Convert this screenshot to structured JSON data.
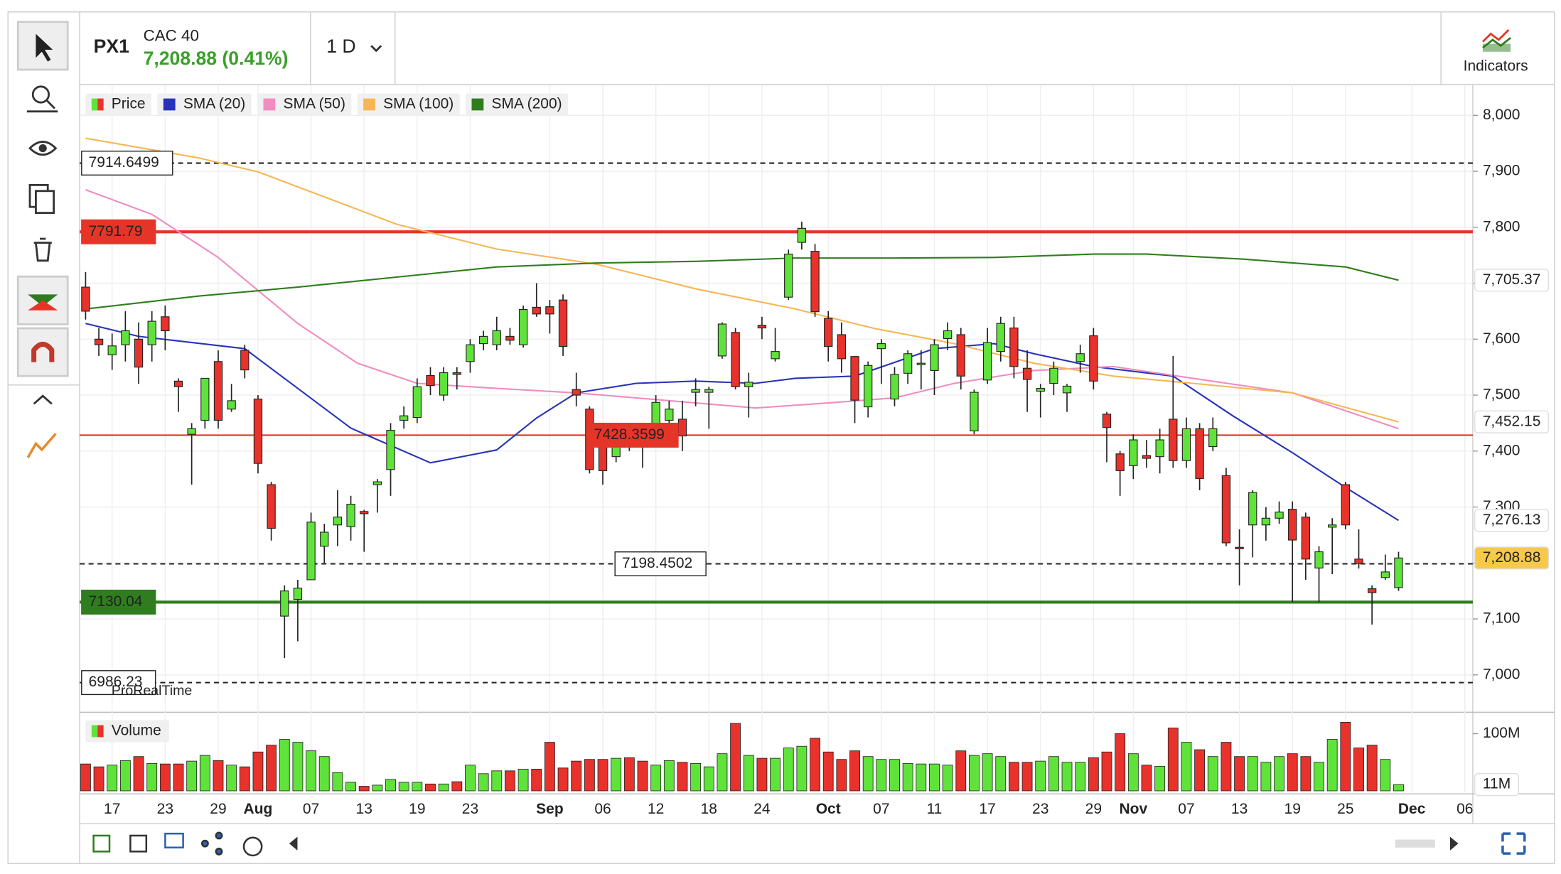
{
  "header": {
    "symbol": "PX1",
    "name": "CAC 40",
    "quote": "7,208.88 (0.41%)",
    "interval": "1 D",
    "indicators": "Indicators"
  },
  "chart_data": [
    {
      "type": "candlestick",
      "name": "Price",
      "up_color": "#5fe33a",
      "down_color": "#e8322b",
      "open": [
        7693,
        7600,
        7572,
        7590,
        7600,
        7590,
        7640,
        7525,
        7430,
        7455,
        7560,
        7475,
        7580,
        7493,
        7340,
        7105,
        7135,
        7170,
        7230,
        7268,
        7265,
        7292,
        7340,
        7367,
        7455,
        7460,
        7535,
        7500,
        7540,
        7560,
        7592,
        7590,
        7605,
        7590,
        7657,
        7658,
        7670,
        7510,
        7475,
        7425,
        7390,
        7440,
        7425,
        7445,
        7455,
        7457,
        7505,
        7505,
        7570,
        7612,
        7515,
        7625,
        7565,
        7675,
        7773,
        7757,
        7637,
        7608,
        7569,
        7479,
        7583,
        7493,
        7539,
        7555,
        7544,
        7601,
        7608,
        7436,
        7527,
        7578,
        7620,
        7548,
        7507,
        7521,
        7504,
        7560,
        7606,
        7466,
        7395,
        7374,
        7392,
        7390,
        7457,
        7383,
        7440,
        7408,
        7356,
        7228,
        7268,
        7268,
        7280,
        7296,
        7282,
        7191,
        7264,
        7340,
        7207,
        7154,
        7174,
        7156
      ],
      "high": [
        7720,
        7620,
        7610,
        7650,
        7630,
        7650,
        7660,
        7530,
        7450,
        7530,
        7580,
        7520,
        7590,
        7500,
        7345,
        7160,
        7170,
        7290,
        7270,
        7330,
        7320,
        7295,
        7350,
        7450,
        7480,
        7530,
        7550,
        7550,
        7550,
        7600,
        7615,
        7640,
        7620,
        7660,
        7700,
        7670,
        7680,
        7540,
        7480,
        7430,
        7430,
        7450,
        7440,
        7500,
        7490,
        7490,
        7530,
        7515,
        7630,
        7620,
        7540,
        7640,
        7620,
        7760,
        7810,
        7770,
        7650,
        7630,
        7570,
        7560,
        7600,
        7550,
        7580,
        7580,
        7600,
        7630,
        7620,
        7510,
        7620,
        7640,
        7640,
        7580,
        7520,
        7560,
        7520,
        7590,
        7620,
        7470,
        7400,
        7430,
        7420,
        7440,
        7570,
        7460,
        7450,
        7460,
        7370,
        7260,
        7330,
        7300,
        7310,
        7310,
        7290,
        7230,
        7280,
        7345,
        7260,
        7160,
        7215,
        7220
      ],
      "low": [
        7635,
        7570,
        7545,
        7560,
        7520,
        7560,
        7580,
        7470,
        7340,
        7440,
        7440,
        7470,
        7530,
        7360,
        7240,
        7030,
        7060,
        7170,
        7200,
        7230,
        7240,
        7220,
        7290,
        7320,
        7440,
        7450,
        7500,
        7490,
        7510,
        7540,
        7580,
        7580,
        7590,
        7585,
        7640,
        7610,
        7570,
        7480,
        7360,
        7340,
        7380,
        7400,
        7370,
        7420,
        7440,
        7400,
        7480,
        7440,
        7565,
        7510,
        7460,
        7600,
        7560,
        7670,
        7760,
        7640,
        7560,
        7540,
        7450,
        7460,
        7520,
        7480,
        7520,
        7510,
        7500,
        7580,
        7510,
        7430,
        7520,
        7560,
        7530,
        7470,
        7460,
        7500,
        7470,
        7540,
        7510,
        7380,
        7320,
        7350,
        7370,
        7360,
        7370,
        7370,
        7330,
        7400,
        7230,
        7160,
        7210,
        7240,
        7270,
        7130,
        7170,
        7130,
        7180,
        7260,
        7190,
        7090,
        7170,
        7150
      ],
      "close": [
        7650,
        7590,
        7588,
        7615,
        7550,
        7632,
        7615,
        7515,
        7440,
        7530,
        7455,
        7490,
        7545,
        7378,
        7262,
        7150,
        7155,
        7273,
        7255,
        7282,
        7305,
        7288,
        7345,
        7437,
        7463,
        7515,
        7517,
        7540,
        7537,
        7590,
        7605,
        7615,
        7598,
        7653,
        7645,
        7645,
        7587,
        7500,
        7367,
        7365,
        7415,
        7430,
        7410,
        7487,
        7475,
        7427,
        7510,
        7510,
        7627,
        7515,
        7523,
        7620,
        7578,
        7752,
        7798,
        7649,
        7587,
        7565,
        7491,
        7553,
        7592,
        7537,
        7574,
        7557,
        7590,
        7615,
        7534,
        7505,
        7594,
        7628,
        7551,
        7528,
        7512,
        7548,
        7516,
        7574,
        7525,
        7442,
        7365,
        7420,
        7387,
        7420,
        7383,
        7440,
        7351,
        7440,
        7236,
        7226,
        7326,
        7280,
        7291,
        7241,
        7207,
        7220,
        7268,
        7268,
        7199,
        7147,
        7184,
        7208.88
      ],
      "close_label": {
        "value": 7208.88,
        "label": "7,208.88"
      },
      "lines": [
        {
          "name": "SMA (20)",
          "color": "#2633b8",
          "x": [
            0,
            4,
            12,
            16,
            20,
            26,
            31,
            34,
            37,
            41.5,
            46,
            50.5,
            53.5,
            58,
            64,
            68.5,
            71.5,
            76,
            82,
            86.5,
            91,
            95,
            99
          ],
          "values": [
            7628,
            7605,
            7583,
            7512,
            7441,
            7379,
            7402,
            7459,
            7504,
            7521,
            7525,
            7521,
            7530,
            7534,
            7583,
            7592,
            7574,
            7551,
            7534,
            7463,
            7397,
            7335,
            7276.13
          ],
          "last_label": {
            "value": 7276.13,
            "label": "7,276.13"
          }
        },
        {
          "name": "SMA (50)",
          "color": "#f08cc0",
          "x": [
            0,
            5,
            10,
            16,
            20.5,
            25,
            31,
            37,
            41.5,
            46,
            50.5,
            56,
            61,
            65.5,
            71.5,
            77.5,
            83.5,
            91,
            99
          ],
          "values": [
            7867,
            7823,
            7746,
            7628,
            7557,
            7521,
            7512,
            7504,
            7495,
            7486,
            7477,
            7486,
            7495,
            7521,
            7544,
            7551,
            7530,
            7504,
            7440
          ]
        },
        {
          "name": "SMA (100)",
          "color": "#f5b755",
          "x": [
            0,
            8.5,
            13,
            23.5,
            31,
            38.5,
            46,
            53.5,
            59.5,
            65.5,
            71.5,
            77.5,
            83.5,
            91,
            99
          ],
          "values": [
            7959,
            7924,
            7899,
            7805,
            7761,
            7734,
            7690,
            7654,
            7619,
            7592,
            7557,
            7534,
            7521,
            7504,
            7452.15
          ],
          "last_label": {
            "value": 7452.15,
            "label": "7,452.15"
          }
        },
        {
          "name": "SMA (200)",
          "color": "#2f7d1e",
          "x": [
            0,
            8.5,
            16,
            23.5,
            31,
            38.5,
            46,
            53.5,
            61,
            68.5,
            76,
            80,
            87.3,
            95,
            99
          ],
          "values": [
            7654,
            7677,
            7693,
            7711,
            7729,
            7736,
            7739,
            7745,
            7745,
            7746,
            7752,
            7752,
            7743,
            7729,
            7705.37
          ],
          "last_label": {
            "value": 7705.37,
            "label": "7,705.37"
          }
        }
      ],
      "levels": [
        {
          "value": 7914.6499,
          "color": "#222222",
          "style": "dashed"
        },
        {
          "value": 7791.79,
          "color": "#e53528",
          "style": "solid"
        },
        {
          "value": 7428.3599,
          "color": "#e53528",
          "style": "thin"
        },
        {
          "value": 7198.4502,
          "color": "#222222",
          "style": "dashed"
        },
        {
          "value": 7130.04,
          "color": "#2f7d1e",
          "style": "solid"
        },
        {
          "value": 6986.23,
          "color": "#222222",
          "style": "dashed"
        }
      ],
      "watermark": "ProRealTime",
      "xlim": [
        -0.45,
        104.6
      ],
      "ylim": [
        6935,
        8055
      ],
      "grid": true,
      "yticks": [
        {
          "value": 7000,
          "label": "7,000"
        },
        {
          "value": 7100,
          "label": "7,100"
        },
        {
          "value": 7200,
          "label": "7,200"
        },
        {
          "value": 7300,
          "label": "7,300"
        },
        {
          "value": 7400,
          "label": "7,400"
        },
        {
          "value": 7500,
          "label": "7,500"
        },
        {
          "value": 7600,
          "label": "7,600"
        },
        {
          "value": 7700,
          "label": "7,700"
        },
        {
          "value": 7800,
          "label": "7,800"
        },
        {
          "value": 7900,
          "label": "7,900"
        },
        {
          "value": 8000,
          "label": "8,000"
        }
      ],
      "xticks": [
        {
          "value": 2,
          "label": "17"
        },
        {
          "value": 6,
          "label": "23"
        },
        {
          "value": 10,
          "label": "29"
        },
        {
          "value": 13,
          "label": "Aug"
        },
        {
          "value": 17,
          "label": "07"
        },
        {
          "value": 21,
          "label": "13"
        },
        {
          "value": 25,
          "label": "19"
        },
        {
          "value": 29,
          "label": "23"
        },
        {
          "value": 35,
          "label": "Sep"
        },
        {
          "value": 39,
          "label": "06"
        },
        {
          "value": 43,
          "label": "12"
        },
        {
          "value": 47,
          "label": "18"
        },
        {
          "value": 51,
          "label": "24"
        },
        {
          "value": 56,
          "label": "Oct"
        },
        {
          "value": 60,
          "label": "07"
        },
        {
          "value": 64,
          "label": "11"
        },
        {
          "value": 68,
          "label": "17"
        },
        {
          "value": 72,
          "label": "23"
        },
        {
          "value": 76,
          "label": "29"
        },
        {
          "value": 79,
          "label": "Nov"
        },
        {
          "value": 83,
          "label": "07"
        },
        {
          "value": 87,
          "label": "13"
        },
        {
          "value": 91,
          "label": "19"
        },
        {
          "value": 95,
          "label": "25"
        },
        {
          "value": 100,
          "label": "Dec"
        },
        {
          "value": 104,
          "label": "06"
        }
      ]
    },
    {
      "type": "bar",
      "name": "Volume",
      "values": [
        47,
        42,
        45,
        53,
        60,
        48,
        47,
        47,
        52,
        62,
        53,
        45,
        42,
        68,
        80,
        90,
        85,
        70,
        60,
        32,
        15,
        8,
        10,
        20,
        15,
        15,
        12,
        12,
        16,
        45,
        30,
        35,
        35,
        38,
        38,
        85,
        40,
        52,
        55,
        55,
        57,
        58,
        52,
        45,
        53,
        50,
        48,
        42,
        65,
        118,
        62,
        57,
        57,
        75,
        78,
        92,
        68,
        55,
        70,
        60,
        55,
        55,
        48,
        47,
        47,
        45,
        70,
        62,
        65,
        60,
        50,
        50,
        52,
        60,
        50,
        50,
        58,
        68,
        100,
        65,
        45,
        43,
        110,
        85,
        72,
        60,
        85,
        60,
        60,
        50,
        60,
        65,
        60,
        50,
        90,
        120,
        75,
        80,
        55,
        11
      ],
      "last_label": {
        "value": 11,
        "label": "11M"
      },
      "ylim": [
        0,
        134
      ],
      "yticks": [
        {
          "value": 100,
          "label": "100M"
        }
      ]
    }
  ]
}
